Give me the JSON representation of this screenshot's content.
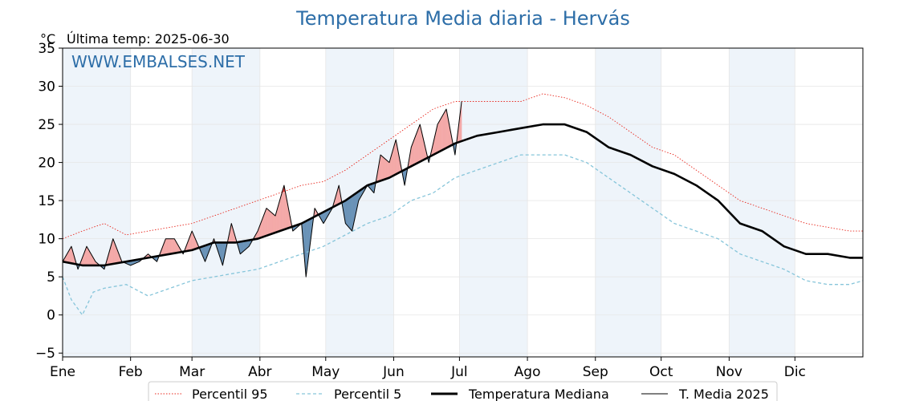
{
  "chart_data": {
    "type": "line",
    "title": "Temperatura Media diaria - Hervás",
    "unit_label": "°C",
    "last_temp_label": "Última temp: 2025-06-30",
    "watermark": "WWW.EMBALSES.NET",
    "xlabel": "",
    "ylabel": "",
    "ylim": [
      -5.5,
      35
    ],
    "yticks": [
      -5,
      0,
      5,
      10,
      15,
      20,
      25,
      30,
      35
    ],
    "ytick_labels": [
      "−5",
      "0",
      "5",
      "10",
      "15",
      "20",
      "25",
      "30",
      "35"
    ],
    "xlim": [
      1,
      366
    ],
    "month_ticks": [
      {
        "label": "Ene",
        "day": 1
      },
      {
        "label": "Feb",
        "day": 32
      },
      {
        "label": "Mar",
        "day": 60
      },
      {
        "label": "Abr",
        "day": 91
      },
      {
        "label": "May",
        "day": 121
      },
      {
        "label": "Jun",
        "day": 152
      },
      {
        "label": "Jul",
        "day": 182
      },
      {
        "label": "Ago",
        "day": 213
      },
      {
        "label": "Sep",
        "day": 244
      },
      {
        "label": "Oct",
        "day": 274
      },
      {
        "label": "Nov",
        "day": 305
      },
      {
        "label": "Dic",
        "day": 335
      }
    ],
    "grid": true,
    "legend_position": "bottom",
    "colors": {
      "p95": "#e8281e",
      "p5": "#86c5da",
      "median": "#000000",
      "current": "#000000",
      "above_fill": "#f4a9a8",
      "above_p95_fill": "#e8383a",
      "below_fill": "#6a93b8",
      "band_fill": "#eef4fa",
      "title": "#2d6ea8"
    },
    "series": [
      {
        "name": "Percentil 95",
        "style": "dotted",
        "points": [
          [
            1,
            10
          ],
          [
            10,
            11
          ],
          [
            20,
            12
          ],
          [
            30,
            10.5
          ],
          [
            40,
            11
          ],
          [
            50,
            11.5
          ],
          [
            60,
            12
          ],
          [
            70,
            13
          ],
          [
            80,
            14
          ],
          [
            90,
            15
          ],
          [
            100,
            16
          ],
          [
            110,
            17
          ],
          [
            120,
            17.5
          ],
          [
            130,
            19
          ],
          [
            140,
            21
          ],
          [
            150,
            23
          ],
          [
            160,
            25
          ],
          [
            170,
            27
          ],
          [
            180,
            28
          ],
          [
            190,
            28
          ],
          [
            200,
            28
          ],
          [
            210,
            28
          ],
          [
            220,
            29
          ],
          [
            230,
            28.5
          ],
          [
            240,
            27.5
          ],
          [
            250,
            26
          ],
          [
            260,
            24
          ],
          [
            270,
            22
          ],
          [
            280,
            21
          ],
          [
            290,
            19
          ],
          [
            300,
            17
          ],
          [
            310,
            15
          ],
          [
            320,
            14
          ],
          [
            330,
            13
          ],
          [
            340,
            12
          ],
          [
            350,
            11.5
          ],
          [
            360,
            11
          ],
          [
            366,
            11
          ]
        ]
      },
      {
        "name": "Percentil 5",
        "style": "dashed",
        "points": [
          [
            1,
            5
          ],
          [
            5,
            2
          ],
          [
            10,
            0
          ],
          [
            15,
            3
          ],
          [
            20,
            3.5
          ],
          [
            30,
            4
          ],
          [
            40,
            2.5
          ],
          [
            50,
            3.5
          ],
          [
            60,
            4.5
          ],
          [
            70,
            5
          ],
          [
            80,
            5.5
          ],
          [
            90,
            6
          ],
          [
            100,
            7
          ],
          [
            110,
            8
          ],
          [
            120,
            9
          ],
          [
            130,
            10.5
          ],
          [
            140,
            12
          ],
          [
            150,
            13
          ],
          [
            160,
            15
          ],
          [
            170,
            16
          ],
          [
            180,
            18
          ],
          [
            190,
            19
          ],
          [
            200,
            20
          ],
          [
            210,
            21
          ],
          [
            220,
            21
          ],
          [
            230,
            21
          ],
          [
            240,
            20
          ],
          [
            250,
            18
          ],
          [
            260,
            16
          ],
          [
            270,
            14
          ],
          [
            280,
            12
          ],
          [
            290,
            11
          ],
          [
            300,
            10
          ],
          [
            310,
            8
          ],
          [
            320,
            7
          ],
          [
            330,
            6
          ],
          [
            340,
            4.5
          ],
          [
            350,
            4
          ],
          [
            360,
            4
          ],
          [
            366,
            4.5
          ]
        ]
      },
      {
        "name": "Temperatura Mediana",
        "style": "thick",
        "points": [
          [
            1,
            7
          ],
          [
            10,
            6.5
          ],
          [
            20,
            6.5
          ],
          [
            30,
            7
          ],
          [
            40,
            7.5
          ],
          [
            50,
            8
          ],
          [
            60,
            8.5
          ],
          [
            70,
            9.5
          ],
          [
            80,
            9.5
          ],
          [
            90,
            10
          ],
          [
            100,
            11
          ],
          [
            110,
            12
          ],
          [
            120,
            13.5
          ],
          [
            130,
            15
          ],
          [
            140,
            17
          ],
          [
            150,
            18
          ],
          [
            160,
            19.5
          ],
          [
            170,
            21
          ],
          [
            180,
            22.5
          ],
          [
            190,
            23.5
          ],
          [
            200,
            24
          ],
          [
            210,
            24.5
          ],
          [
            220,
            25
          ],
          [
            230,
            25
          ],
          [
            240,
            24
          ],
          [
            250,
            22
          ],
          [
            260,
            21
          ],
          [
            270,
            19.5
          ],
          [
            280,
            18.5
          ],
          [
            290,
            17
          ],
          [
            300,
            15
          ],
          [
            310,
            12
          ],
          [
            320,
            11
          ],
          [
            330,
            9
          ],
          [
            340,
            8
          ],
          [
            350,
            8
          ],
          [
            360,
            7.5
          ],
          [
            366,
            7.5
          ]
        ]
      },
      {
        "name": "T. Media 2025",
        "style": "thin",
        "points": [
          [
            1,
            7
          ],
          [
            5,
            9
          ],
          [
            8,
            6
          ],
          [
            12,
            9
          ],
          [
            16,
            7
          ],
          [
            20,
            6
          ],
          [
            24,
            10
          ],
          [
            28,
            7
          ],
          [
            32,
            6.5
          ],
          [
            36,
            7
          ],
          [
            40,
            8
          ],
          [
            44,
            7
          ],
          [
            48,
            10
          ],
          [
            52,
            10
          ],
          [
            56,
            8
          ],
          [
            60,
            11
          ],
          [
            63,
            9
          ],
          [
            66,
            7
          ],
          [
            70,
            10
          ],
          [
            74,
            6.5
          ],
          [
            78,
            12
          ],
          [
            82,
            8
          ],
          [
            86,
            9
          ],
          [
            90,
            11
          ],
          [
            94,
            14
          ],
          [
            98,
            13
          ],
          [
            102,
            17
          ],
          [
            106,
            11
          ],
          [
            110,
            12
          ],
          [
            112,
            5
          ],
          [
            116,
            14
          ],
          [
            120,
            12
          ],
          [
            124,
            14
          ],
          [
            127,
            17
          ],
          [
            130,
            12
          ],
          [
            133,
            11
          ],
          [
            136,
            15
          ],
          [
            140,
            17
          ],
          [
            143,
            16
          ],
          [
            146,
            21
          ],
          [
            150,
            20
          ],
          [
            153,
            23
          ],
          [
            157,
            17
          ],
          [
            160,
            22
          ],
          [
            164,
            25
          ],
          [
            168,
            20
          ],
          [
            172,
            25
          ],
          [
            176,
            27
          ],
          [
            180,
            21
          ],
          [
            183,
            28
          ]
        ]
      }
    ],
    "legend_entries": [
      "Percentil 95",
      "Percentil 5",
      "Temperatura Mediana",
      "T. Media 2025"
    ]
  }
}
